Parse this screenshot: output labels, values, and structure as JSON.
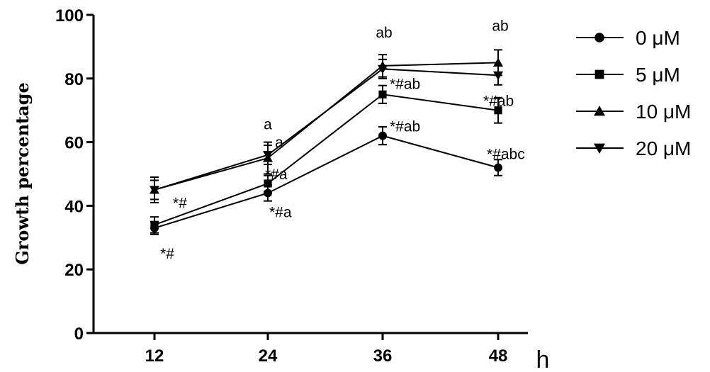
{
  "chart_data": {
    "type": "line",
    "title": "",
    "xlabel": "h",
    "ylabel": "Growth percentage",
    "x": [
      12,
      24,
      36,
      48
    ],
    "xticks": [
      "12",
      "24",
      "36",
      "48"
    ],
    "yticks": [
      "0",
      "20",
      "40",
      "60",
      "80",
      "100"
    ],
    "ylim": [
      0,
      100
    ],
    "grid": false,
    "legend": "right",
    "series": [
      {
        "name": "0 μM",
        "marker": "circle",
        "values": [
          33,
          44,
          62,
          52
        ],
        "errors": [
          2,
          2.5,
          2.8,
          2.5
        ]
      },
      {
        "name": "5 μM",
        "marker": "square",
        "values": [
          34,
          47,
          75,
          70
        ],
        "errors": [
          2.5,
          2.5,
          2.8,
          4
        ]
      },
      {
        "name": "10 μM",
        "marker": "triangle-up",
        "values": [
          45,
          55,
          84,
          85
        ],
        "errors": [
          4,
          5,
          3.5,
          4
        ]
      },
      {
        "name": "20 μM",
        "marker": "triangle-down",
        "values": [
          45,
          56,
          83,
          81
        ],
        "errors": [
          3,
          3,
          3,
          3
        ]
      }
    ],
    "annotations": [
      {
        "text": "*#",
        "x": 12,
        "series": "5 μM"
      },
      {
        "text": "*#",
        "x": 12,
        "series": "0 μM"
      },
      {
        "text": "a",
        "x": 24,
        "series": "20 μM"
      },
      {
        "text": "a",
        "x": 24,
        "series": "10 μM"
      },
      {
        "text": "*#a",
        "x": 24,
        "series": "5 μM"
      },
      {
        "text": "*#a",
        "x": 24,
        "series": "0 μM"
      },
      {
        "text": "ab",
        "x": 36,
        "series": "10 μM"
      },
      {
        "text": "*#ab",
        "x": 36,
        "series": "5 μM"
      },
      {
        "text": "*#ab",
        "x": 36,
        "series": "0 μM"
      },
      {
        "text": "ab",
        "x": 48,
        "series": "10 μM"
      },
      {
        "text": "*#ab",
        "x": 48,
        "series": "5 μM"
      },
      {
        "text": "*#abc",
        "x": 48,
        "series": "0 μM"
      }
    ]
  }
}
